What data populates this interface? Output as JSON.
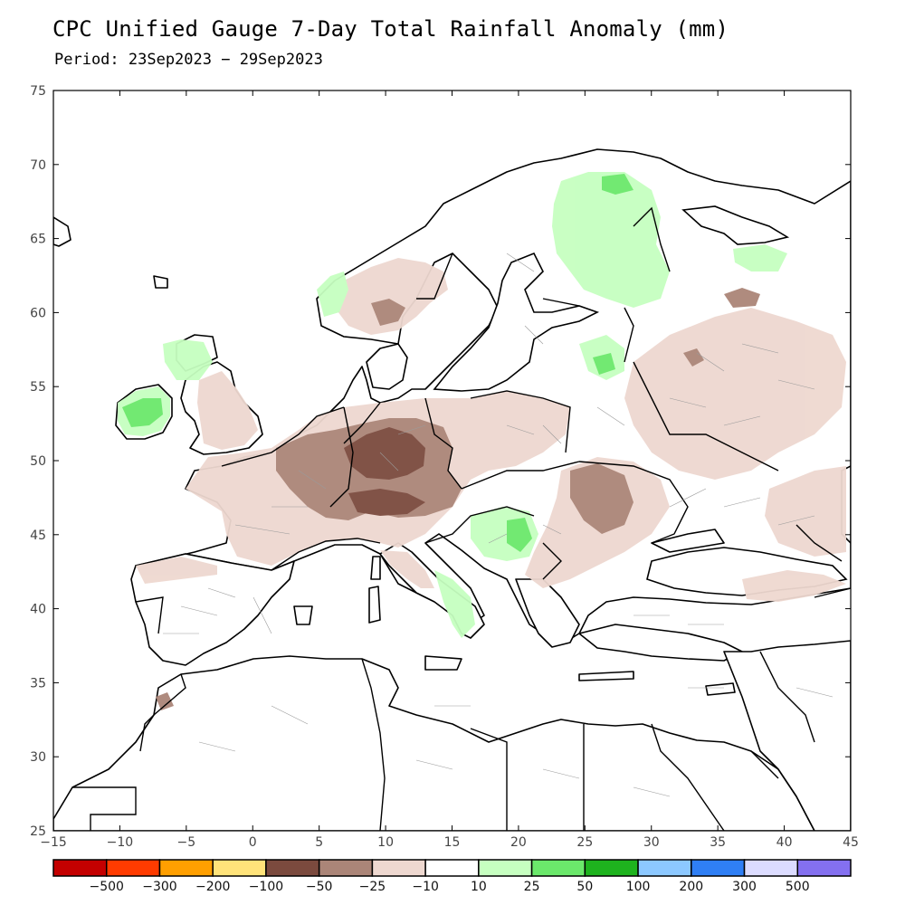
{
  "title": "CPC Unified Gauge 7-Day Total Rainfall Anomaly (mm)",
  "subtitle": "Period: 23Sep2023 − 29Sep2023",
  "map": {
    "lon_range": [
      -15,
      45
    ],
    "lat_range": [
      25,
      75
    ],
    "x_ticks": [
      "−15",
      "−10",
      "−5",
      "0",
      "5",
      "10",
      "15",
      "20",
      "25",
      "30",
      "35",
      "40",
      "45"
    ],
    "y_ticks": [
      "25",
      "30",
      "35",
      "40",
      "45",
      "50",
      "55",
      "60",
      "65",
      "70",
      "75"
    ],
    "land_color": "#ffffff",
    "border_color": "#000000"
  },
  "colorbar": {
    "colors": [
      "#c40000",
      "#ff3b00",
      "#ff9f00",
      "#ffe37a",
      "#7b4a3e",
      "#ab8578",
      "#eed8d0",
      "#ffffff",
      "#c6ffc0",
      "#6be86b",
      "#1eb31e",
      "#8cc8ff",
      "#2f7ff5",
      "#dcdcff",
      "#8470f0"
    ],
    "labels": [
      "−500",
      "−300",
      "−200",
      "−100",
      "−50",
      "−25",
      "−10",
      "10",
      "25",
      "50",
      "100",
      "200",
      "300",
      "500"
    ]
  },
  "anomaly_regions": [
    {
      "name": "central-europe-dry",
      "category": "-50"
    },
    {
      "name": "western-europe-dry",
      "category": "-25"
    },
    {
      "name": "ireland-wet",
      "category": "25"
    },
    {
      "name": "finland-wet",
      "category": "25"
    },
    {
      "name": "balkans-wet",
      "category": "25"
    }
  ]
}
